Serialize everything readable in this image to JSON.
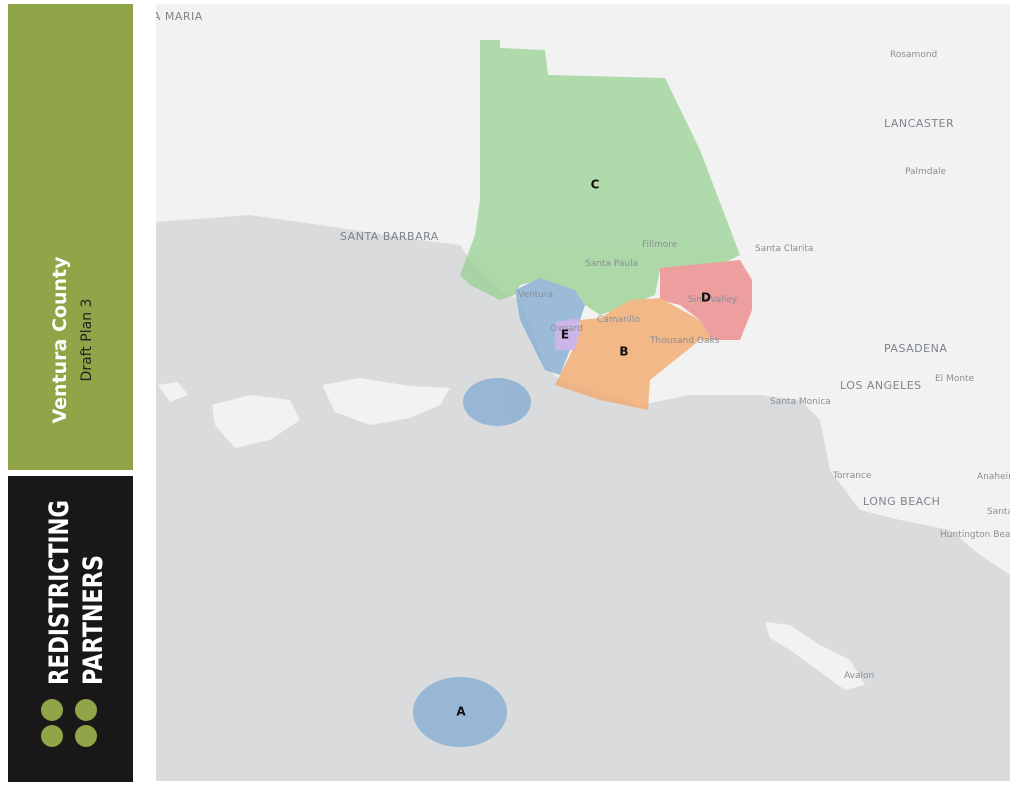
{
  "sidebar": {
    "title": "Ventura County",
    "subtitle": "Draft Plan 3"
  },
  "logo": {
    "line1": "REDISTRICTING",
    "line2": "PARTNERS"
  },
  "districts": [
    "A",
    "B",
    "C",
    "D",
    "E"
  ],
  "places": [
    "SANTA MARIA",
    "Rosamond",
    "LANCASTER",
    "Palmdale",
    "SANTA BARBARA",
    "Santa Clarita",
    "Fillmore",
    "Santa Paula",
    "Ventura",
    "Camarillo",
    "Simi Valley",
    "Thousand Oaks",
    "Oxnard",
    "PASADENA",
    "LOS ANGELES",
    "El Monte",
    "Santa Monica",
    "Torrance",
    "Anaheim",
    "LONG BEACH",
    "Santa Ana",
    "Huntington Beach",
    "Avalon"
  ]
}
